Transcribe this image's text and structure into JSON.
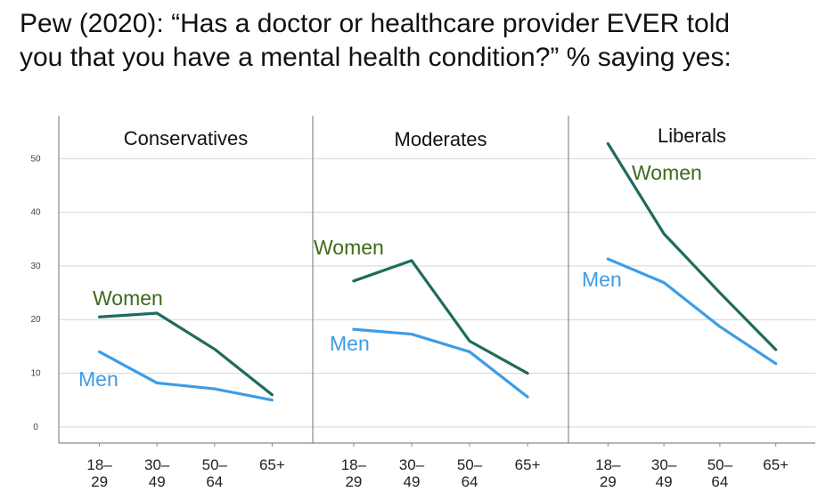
{
  "title_lines": [
    "Pew (2020): “Has a doctor or healthcare provider EVER told",
    "you that you have a mental health condition?” % saying yes:"
  ],
  "colors": {
    "women": "#1f6b5c",
    "men": "#3d9ce6",
    "women_label": "#3e6b1a",
    "men_label": "#3d9ce6",
    "grid": "#d4d4d4",
    "axis": "#8a8a8a"
  },
  "chart_data": {
    "type": "line",
    "categories": [
      "18–\n29",
      "30–\n49",
      "50–\n64",
      "65+"
    ],
    "y_ticks": [
      0,
      10,
      20,
      30,
      40,
      50
    ],
    "ylim": [
      -3,
      58
    ],
    "grid": true,
    "panels": [
      {
        "title": "Conservatives",
        "series": [
          {
            "name": "Women",
            "values": [
              20.5,
              21.2,
              14.5,
              6.0
            ]
          },
          {
            "name": "Men",
            "values": [
              14.0,
              8.2,
              7.1,
              5.0
            ]
          }
        ]
      },
      {
        "title": "Moderates",
        "series": [
          {
            "name": "Women",
            "values": [
              27.2,
              31.0,
              16.0,
              10.0
            ]
          },
          {
            "name": "Men",
            "values": [
              18.2,
              17.3,
              14.0,
              5.6
            ]
          }
        ]
      },
      {
        "title": "Liberals",
        "series": [
          {
            "name": "Women",
            "values": [
              52.8,
              36.0,
              25.0,
              14.4
            ]
          },
          {
            "name": "Men",
            "values": [
              31.3,
              26.9,
              18.7,
              11.8
            ]
          }
        ]
      }
    ]
  }
}
